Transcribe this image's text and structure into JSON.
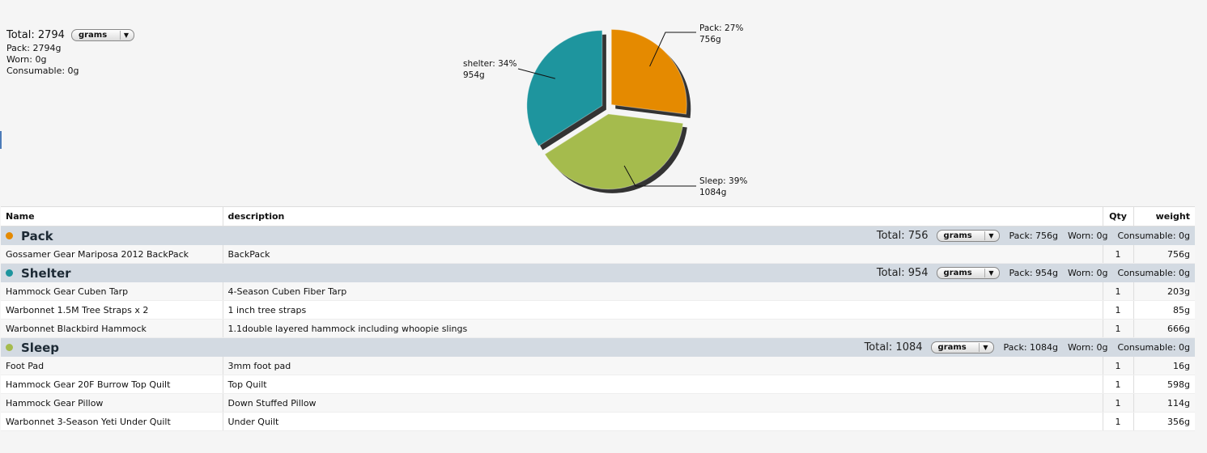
{
  "summary": {
    "total_label": "Total: 2794",
    "unit": "grams",
    "pack": "Pack: 2794g",
    "worn": "Worn: 0g",
    "consumable": "Consumable: 0g"
  },
  "chart_data": {
    "type": "pie",
    "slices": [
      {
        "label": "Pack",
        "percent": 27,
        "value": 756,
        "value_label": "756g",
        "display": "Pack: 27%",
        "color": "#e58a00"
      },
      {
        "label": "Sleep",
        "percent": 39,
        "value": 1084,
        "value_label": "1084g",
        "display": "Sleep: 39%",
        "color": "#a5bb4d"
      },
      {
        "label": "shelter",
        "percent": 34,
        "value": 954,
        "value_label": "954g",
        "display": "shelter: 34%",
        "color": "#1e959e"
      }
    ]
  },
  "table": {
    "headers": {
      "name": "Name",
      "description": "description",
      "qty": "Qty",
      "weight": "weight"
    },
    "categories": [
      {
        "name": "Pack",
        "color": "#e58a00",
        "total": "Total: 756",
        "unit": "grams",
        "pack": "Pack: 756g",
        "worn": "Worn: 0g",
        "consumable": "Consumable: 0g",
        "items": [
          {
            "name": "Gossamer Gear Mariposa 2012 BackPack",
            "description": "BackPack",
            "qty": "1",
            "weight": "756g"
          }
        ]
      },
      {
        "name": "Shelter",
        "color": "#1e959e",
        "total": "Total: 954",
        "unit": "grams",
        "pack": "Pack: 954g",
        "worn": "Worn: 0g",
        "consumable": "Consumable: 0g",
        "items": [
          {
            "name": "Hammock Gear Cuben Tarp",
            "description": "4-Season Cuben Fiber Tarp",
            "qty": "1",
            "weight": "203g"
          },
          {
            "name": "Warbonnet 1.5M Tree Straps x 2",
            "description": "1 inch tree straps",
            "qty": "1",
            "weight": "85g"
          },
          {
            "name": "Warbonnet Blackbird Hammock",
            "description": "1.1double layered hammock including whoopie slings",
            "qty": "1",
            "weight": "666g"
          }
        ]
      },
      {
        "name": "Sleep",
        "color": "#a5bb4d",
        "total": "Total: 1084",
        "unit": "grams",
        "pack": "Pack: 1084g",
        "worn": "Worn: 0g",
        "consumable": "Consumable: 0g",
        "items": [
          {
            "name": "Foot Pad",
            "description": "3mm foot pad",
            "qty": "1",
            "weight": "16g"
          },
          {
            "name": "Hammock Gear 20F Burrow Top Quilt",
            "description": "Top Quilt",
            "qty": "1",
            "weight": "598g"
          },
          {
            "name": "Hammock Gear Pillow",
            "description": "Down Stuffed Pillow",
            "qty": "1",
            "weight": "114g"
          },
          {
            "name": "Warbonnet 3-Season Yeti Under Quilt",
            "description": "Under Quilt",
            "qty": "1",
            "weight": "356g"
          }
        ]
      }
    ]
  }
}
